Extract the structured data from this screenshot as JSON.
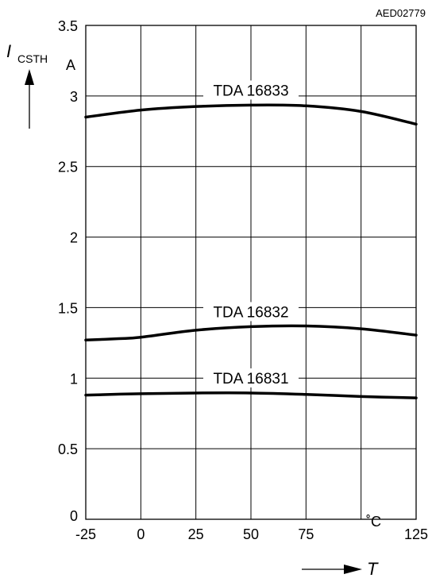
{
  "chart_data": {
    "type": "line",
    "code": "AED02779",
    "ylabel_symbol": "I",
    "ylabel_subscript": "CSTH",
    "yunit": "A",
    "xlabel_symbol": "T",
    "xunit": "˚C",
    "xlim": [
      -25,
      125
    ],
    "ylim": [
      0,
      3.5
    ],
    "xticks": [
      -25,
      0,
      25,
      50,
      75,
      100,
      125
    ],
    "xtick_labels": [
      "-25",
      "0",
      "25",
      "50",
      "75",
      "",
      "125"
    ],
    "yticks": [
      0,
      0.5,
      1,
      1.5,
      2,
      2.5,
      3,
      3.5
    ],
    "ytick_labels": [
      "0",
      "0.5",
      "1",
      "1.5",
      "2",
      "2.5",
      "3",
      "3.5"
    ],
    "grid": true,
    "series": [
      {
        "name": "TDA 16833",
        "x": [
          -25,
          0,
          25,
          50,
          75,
          100,
          125
        ],
        "y": [
          2.85,
          2.9,
          2.925,
          2.935,
          2.93,
          2.89,
          2.8
        ]
      },
      {
        "name": "TDA 16832",
        "x": [
          -25,
          -10,
          0,
          25,
          50,
          75,
          100,
          125
        ],
        "y": [
          1.27,
          1.28,
          1.29,
          1.34,
          1.365,
          1.37,
          1.35,
          1.305
        ]
      },
      {
        "name": "TDA 16831",
        "x": [
          -25,
          0,
          25,
          50,
          75,
          100,
          125
        ],
        "y": [
          0.88,
          0.89,
          0.895,
          0.895,
          0.885,
          0.87,
          0.86
        ]
      }
    ]
  }
}
